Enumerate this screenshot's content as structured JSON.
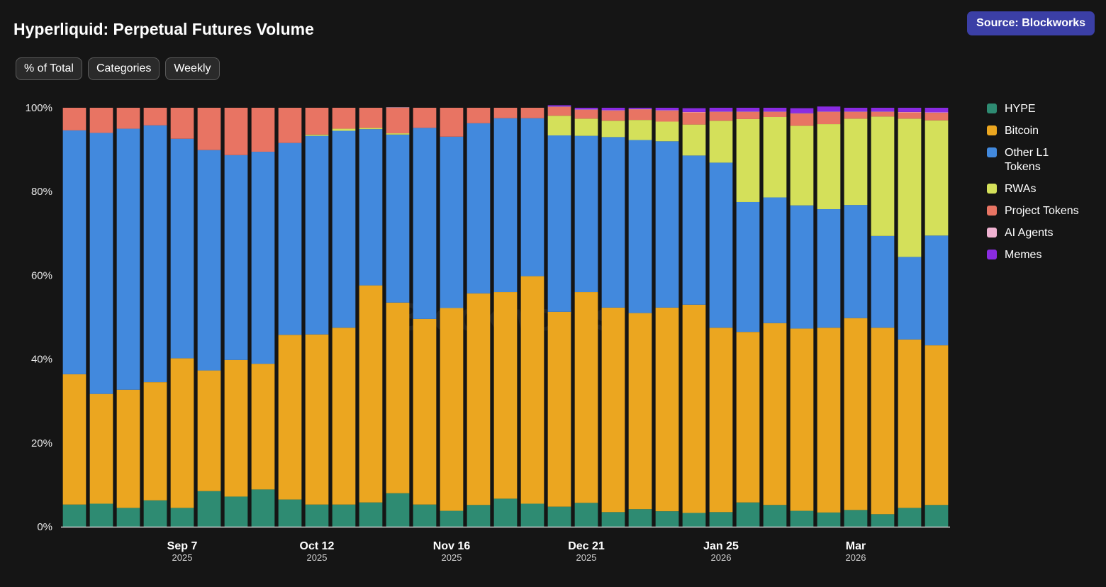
{
  "header": {
    "title": "Hyperliquid: Perpetual Futures Volume",
    "source_label": "Source: Blockworks"
  },
  "controls": {
    "mode_label": "% of Total",
    "grouping_label": "Categories",
    "interval_label": "Weekly"
  },
  "watermark": "Blockworks",
  "colors": {
    "background": "#151515",
    "HYPE": "#2e8b72",
    "Bitcoin": "#eba620",
    "Other L1 Tokens": "#4289dd",
    "RWAs": "#d4e05a",
    "Project Tokens": "#e87463",
    "AI Agents": "#efb2d1",
    "Memes": "#8a2be2"
  },
  "legend": {
    "items": [
      {
        "name": "HYPE",
        "color": "#2e8b72"
      },
      {
        "name": "Bitcoin",
        "color": "#eba620"
      },
      {
        "name": "Other L1 Tokens",
        "color": "#4289dd"
      },
      {
        "name": "RWAs",
        "color": "#d4e05a"
      },
      {
        "name": "Project Tokens",
        "color": "#e87463"
      },
      {
        "name": "AI Agents",
        "color": "#efb2d1"
      },
      {
        "name": "Memes",
        "color": "#8a2be2"
      }
    ]
  },
  "chart_data": {
    "type": "bar",
    "stacked": true,
    "title": "Hyperliquid: Perpetual Futures Volume",
    "xlabel": "",
    "ylabel": "",
    "ylim": [
      0,
      100
    ],
    "y_ticks": [
      "0%",
      "20%",
      "40%",
      "60%",
      "80%",
      "100%"
    ],
    "x_ticks": [
      {
        "index": 4.5,
        "label": "Sep 7",
        "year": "2025"
      },
      {
        "index": 9.5,
        "label": "Oct 12",
        "year": "2025"
      },
      {
        "index": 14.5,
        "label": "Nov 16",
        "year": "2025"
      },
      {
        "index": 19.5,
        "label": "Dec 21",
        "year": "2025"
      },
      {
        "index": 24.5,
        "label": "Jan 25",
        "year": "2026"
      },
      {
        "index": 29.5,
        "label": "Mar",
        "year": "2026"
      }
    ],
    "legend_position": "right",
    "series": [
      {
        "name": "HYPE",
        "values": [
          5.3,
          5.5,
          4.5,
          6.3,
          4.5,
          8.5,
          7.2,
          8.9,
          6.5,
          5.3,
          5.3,
          5.8,
          8.0,
          5.3,
          3.8,
          5.2,
          6.7,
          5.5,
          4.8,
          5.7,
          3.5,
          4.2,
          3.7,
          3.3,
          3.5,
          5.8,
          5.2,
          3.8,
          3.4,
          4.0,
          3.0,
          4.5,
          5.2
        ]
      },
      {
        "name": "Bitcoin",
        "values": [
          31.1,
          26.2,
          28.2,
          28.2,
          35.7,
          28.8,
          32.6,
          30.0,
          39.3,
          40.6,
          42.2,
          51.8,
          45.5,
          44.3,
          48.4,
          50.5,
          49.3,
          54.3,
          46.5,
          50.3,
          48.8,
          46.8,
          48.6,
          49.7,
          44.0,
          40.7,
          43.4,
          43.5,
          44.1,
          45.8,
          44.5,
          40.2,
          38.1
        ]
      },
      {
        "name": "Other L1 Tokens",
        "values": [
          58.2,
          62.3,
          62.3,
          61.3,
          52.4,
          52.6,
          48.9,
          50.6,
          45.8,
          47.4,
          47.0,
          37.3,
          40.1,
          45.6,
          40.9,
          40.6,
          41.5,
          37.7,
          42.1,
          37.3,
          40.7,
          41.3,
          39.7,
          35.6,
          39.4,
          31.0,
          30.0,
          29.4,
          28.3,
          27.0,
          21.9,
          19.7,
          26.2
        ]
      },
      {
        "name": "RWAs",
        "values": [
          0,
          0,
          0,
          0,
          0,
          0,
          0,
          0,
          0,
          0.3,
          0.5,
          0.3,
          0.3,
          0,
          0,
          0,
          0,
          0,
          4.7,
          4.1,
          3.9,
          4.8,
          4.7,
          7.4,
          10.0,
          19.8,
          19.2,
          19.0,
          20.3,
          20.6,
          28.5,
          33.0,
          27.5
        ]
      },
      {
        "name": "Project Tokens",
        "values": [
          5.4,
          6.0,
          5.0,
          4.2,
          7.4,
          10.1,
          11.3,
          10.5,
          8.4,
          6.4,
          5.0,
          4.8,
          6.1,
          4.8,
          6.9,
          3.7,
          2.5,
          2.5,
          2.1,
          2.1,
          2.4,
          2.5,
          2.6,
          2.9,
          2.1,
          1.7,
          1.2,
          2.9,
          2.9,
          1.6,
          1.1,
          1.5,
          1.8
        ]
      },
      {
        "name": "AI Agents",
        "values": [
          0,
          0,
          0,
          0,
          0,
          0,
          0,
          0,
          0,
          0,
          0,
          0,
          0.1,
          0,
          0,
          0,
          0,
          0,
          0.1,
          0.1,
          0.1,
          0.1,
          0.1,
          0.1,
          0.1,
          0.1,
          0.1,
          0.1,
          0.1,
          0.1,
          0.1,
          0.1,
          0.1
        ]
      },
      {
        "name": "Memes",
        "values": [
          0,
          0,
          0,
          0,
          0,
          0,
          0,
          0,
          0,
          0,
          0,
          0,
          0,
          0,
          0,
          0,
          0,
          0,
          0.3,
          0.4,
          0.6,
          0.3,
          0.6,
          0.9,
          0.9,
          0.9,
          0.9,
          1.2,
          1.2,
          0.9,
          0.9,
          1.0,
          1.1
        ]
      }
    ]
  }
}
